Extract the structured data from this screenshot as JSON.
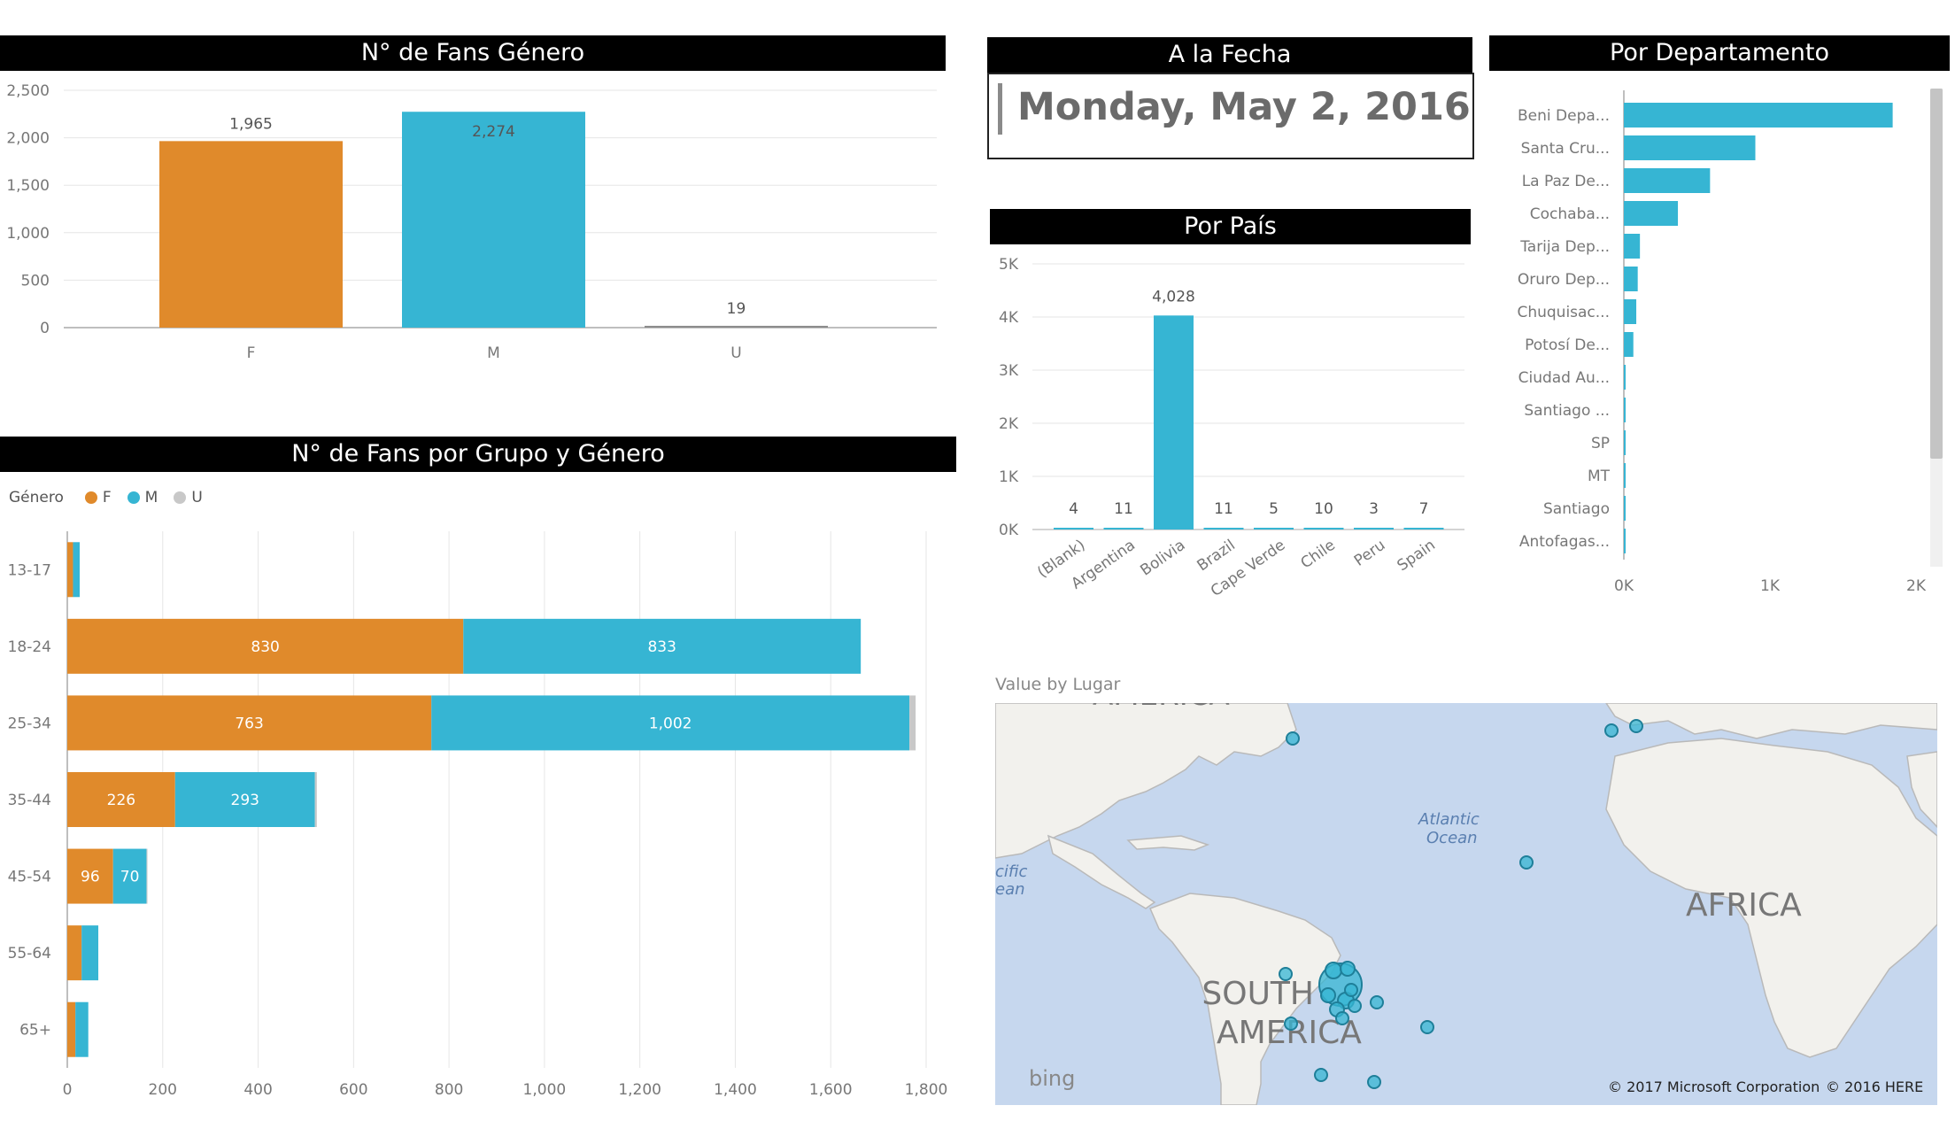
{
  "gender_chart": {
    "title": "N° de Fans Género",
    "chart_data": {
      "type": "bar",
      "categories": [
        "F",
        "M",
        "U"
      ],
      "values": [
        1965,
        2274,
        19
      ],
      "labels": [
        "1,965",
        "2,274",
        "19"
      ],
      "colors": [
        "#e08a2b",
        "#36b5d3",
        "#8c8c8c"
      ],
      "yticks": [
        "0",
        "500",
        "1,000",
        "1,500",
        "2,000",
        "2,500"
      ],
      "ylim": [
        0,
        2500
      ],
      "grid": true
    }
  },
  "group_chart": {
    "title": "N° de Fans por Grupo y Género",
    "legend_title": "Género",
    "legend": [
      {
        "name": "F",
        "color": "#e08a2b"
      },
      {
        "name": "M",
        "color": "#36b5d3"
      },
      {
        "name": "U",
        "color": "#c8c8c8"
      }
    ],
    "chart_data": {
      "type": "bar",
      "orientation": "horizontal",
      "stacked": true,
      "categories": [
        "13-17",
        "18-24",
        "25-34",
        "35-44",
        "45-54",
        "55-64",
        "65+"
      ],
      "series": [
        {
          "name": "F",
          "values": [
            12,
            830,
            763,
            226,
            96,
            30,
            17
          ],
          "labels": [
            "",
            "830",
            "763",
            "226",
            "96",
            "",
            ""
          ]
        },
        {
          "name": "M",
          "values": [
            14,
            833,
            1002,
            293,
            70,
            35,
            27
          ],
          "labels": [
            "",
            "833",
            "1,002",
            "293",
            "70",
            "",
            ""
          ]
        },
        {
          "name": "U",
          "values": [
            0,
            0,
            13,
            4,
            2,
            0,
            0
          ],
          "labels": [
            "",
            "",
            "",
            "",
            "",
            "",
            ""
          ]
        }
      ],
      "xticks": [
        "0",
        "200",
        "400",
        "600",
        "800",
        "1,000",
        "1,200",
        "1,400",
        "1,600",
        "1,800"
      ],
      "xlim": [
        0,
        1800
      ],
      "grid": true
    }
  },
  "date_card": {
    "title": "A la Fecha",
    "value": "Monday, May 2, 2016"
  },
  "country_chart": {
    "title": "Por País",
    "chart_data": {
      "type": "bar",
      "categories": [
        "(Blank)",
        "Argentina",
        "Bolivia",
        "Brazil",
        "Cape Verde",
        "Chile",
        "Peru",
        "Spain"
      ],
      "values": [
        4,
        11,
        4028,
        11,
        5,
        10,
        3,
        7
      ],
      "labels": [
        "4",
        "11",
        "4,028",
        "11",
        "5",
        "10",
        "3",
        "7"
      ],
      "color": "#36b5d3",
      "yticks": [
        "0K",
        "1K",
        "2K",
        "3K",
        "4K",
        "5K"
      ],
      "ylim": [
        0,
        5000
      ],
      "grid": true
    }
  },
  "dept_chart": {
    "title": "Por Departamento",
    "chart_data": {
      "type": "bar",
      "orientation": "horizontal",
      "categories": [
        "Beni Depa...",
        "Santa Cru...",
        "La Paz De...",
        "Cochaba...",
        "Tarija Dep...",
        "Oruro Dep...",
        "Chuquisac...",
        "Potosí De...",
        "Ciudad Au...",
        "Santiago ...",
        "SP",
        "MT",
        "Santiago",
        "Antofagas..."
      ],
      "values": [
        1840,
        900,
        590,
        370,
        110,
        95,
        85,
        65,
        10,
        8,
        6,
        5,
        4,
        3
      ],
      "color": "#36b5d3",
      "xticks": [
        "0K",
        "1K",
        "2K"
      ],
      "xlim": [
        0,
        2000
      ]
    }
  },
  "map": {
    "title": "Value by Lugar",
    "labels": {
      "north_america": "AMERICA",
      "atlantic_1": "Atlantic",
      "atlantic_2": "Ocean",
      "pacific_1": "cific",
      "pacific_2": "ean",
      "africa": "AFRICA",
      "south_america_1": "SOUTH",
      "south_america_2": "AMERICA"
    },
    "logo": "bing",
    "copyright_1": "© 2017 Microsoft Corporation",
    "copyright_2": "© 2016 HERE"
  }
}
